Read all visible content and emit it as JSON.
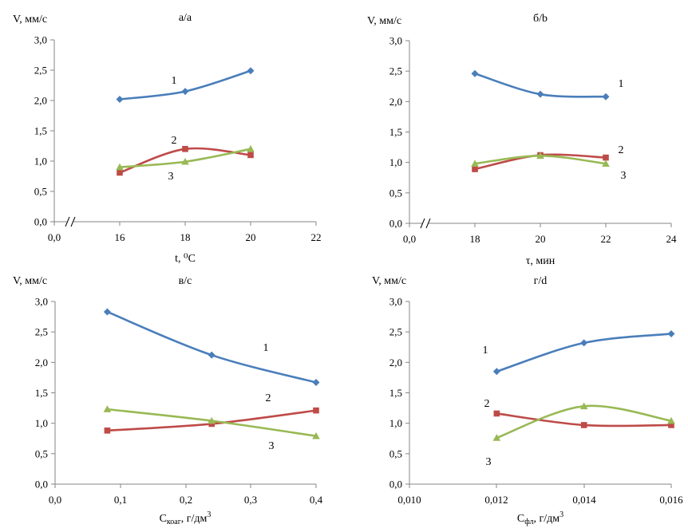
{
  "colors": {
    "series1": "#4a7ebb",
    "series2": "#be4b48",
    "series3": "#98b954",
    "axis": "#868686"
  },
  "chart_data": [
    {
      "type": "line",
      "title": "а/a",
      "ylabel": "V, мм/с",
      "xlabel": "t, ⁰С",
      "ylim": [
        0,
        3
      ],
      "yticks": [
        "0,0",
        "0,5",
        "1,0",
        "1,5",
        "2,0",
        "2,5",
        "3,0"
      ],
      "xticks": [
        "0,0",
        "16",
        "18",
        "20",
        "22"
      ],
      "axis_break": true,
      "grid": false,
      "series": [
        {
          "name": "1",
          "x": [
            16,
            18,
            20
          ],
          "values": [
            2.02,
            2.15,
            2.49
          ]
        },
        {
          "name": "2",
          "x": [
            16,
            18,
            20
          ],
          "values": [
            0.81,
            1.2,
            1.1
          ]
        },
        {
          "name": "3",
          "x": [
            16,
            18,
            20
          ],
          "values": [
            0.9,
            0.99,
            1.2
          ]
        }
      ]
    },
    {
      "type": "line",
      "title": "б/b",
      "ylabel": "V, мм/с",
      "xlabel": "τ, мин",
      "ylim": [
        0,
        3
      ],
      "yticks": [
        "0,0",
        "0,5",
        "1,0",
        "1,5",
        "2,0",
        "2,5",
        "3,0"
      ],
      "xticks": [
        "0,0",
        "18",
        "20",
        "22",
        "24"
      ],
      "axis_break": true,
      "grid": false,
      "series": [
        {
          "name": "1",
          "x": [
            18,
            20,
            22
          ],
          "values": [
            2.46,
            2.12,
            2.08
          ]
        },
        {
          "name": "2",
          "x": [
            18,
            20,
            22
          ],
          "values": [
            0.89,
            1.12,
            1.08
          ]
        },
        {
          "name": "3",
          "x": [
            18,
            20,
            22
          ],
          "values": [
            0.98,
            1.11,
            0.98
          ]
        }
      ]
    },
    {
      "type": "line",
      "title": "в/c",
      "ylabel": "V, мм/с",
      "xlabel_main": "C",
      "xlabel_sub": "коаг",
      "xlabel_rest": ", г/дм",
      "xlabel_sup": "3",
      "ylim": [
        0,
        3
      ],
      "xlim": [
        0,
        0.4
      ],
      "yticks": [
        "0,0",
        "0,5",
        "1,0",
        "1,5",
        "2,0",
        "2,5",
        "3,0"
      ],
      "xticks": [
        "0,0",
        "0,1",
        "0,2",
        "0,3",
        "0,4"
      ],
      "grid": false,
      "series": [
        {
          "name": "1",
          "x": [
            0.08,
            0.24,
            0.4
          ],
          "values": [
            2.83,
            2.12,
            1.67
          ]
        },
        {
          "name": "2",
          "x": [
            0.08,
            0.24,
            0.4
          ],
          "values": [
            0.88,
            0.99,
            1.21
          ]
        },
        {
          "name": "3",
          "x": [
            0.08,
            0.24,
            0.4
          ],
          "values": [
            1.23,
            1.04,
            0.79
          ]
        }
      ]
    },
    {
      "type": "line",
      "title": "г/d",
      "ylabel": "V, мм/с",
      "xlabel_main": "C",
      "xlabel_sub": "фл",
      "xlabel_rest": ", г/дм",
      "xlabel_sup": "3",
      "ylim": [
        0,
        3
      ],
      "xlim": [
        0.01,
        0.016
      ],
      "yticks": [
        "0,0",
        "0,5",
        "1,0",
        "1,5",
        "2,0",
        "2,5",
        "3,0"
      ],
      "xticks": [
        "0,010",
        "0,012",
        "0,014",
        "0,016"
      ],
      "grid": false,
      "series": [
        {
          "name": "1",
          "x": [
            0.012,
            0.014,
            0.016
          ],
          "values": [
            1.85,
            2.32,
            2.47
          ]
        },
        {
          "name": "2",
          "x": [
            0.012,
            0.014,
            0.016
          ],
          "values": [
            1.16,
            0.97,
            0.97
          ]
        },
        {
          "name": "3",
          "x": [
            0.012,
            0.014,
            0.016
          ],
          "values": [
            0.76,
            1.28,
            1.04
          ]
        }
      ]
    }
  ]
}
